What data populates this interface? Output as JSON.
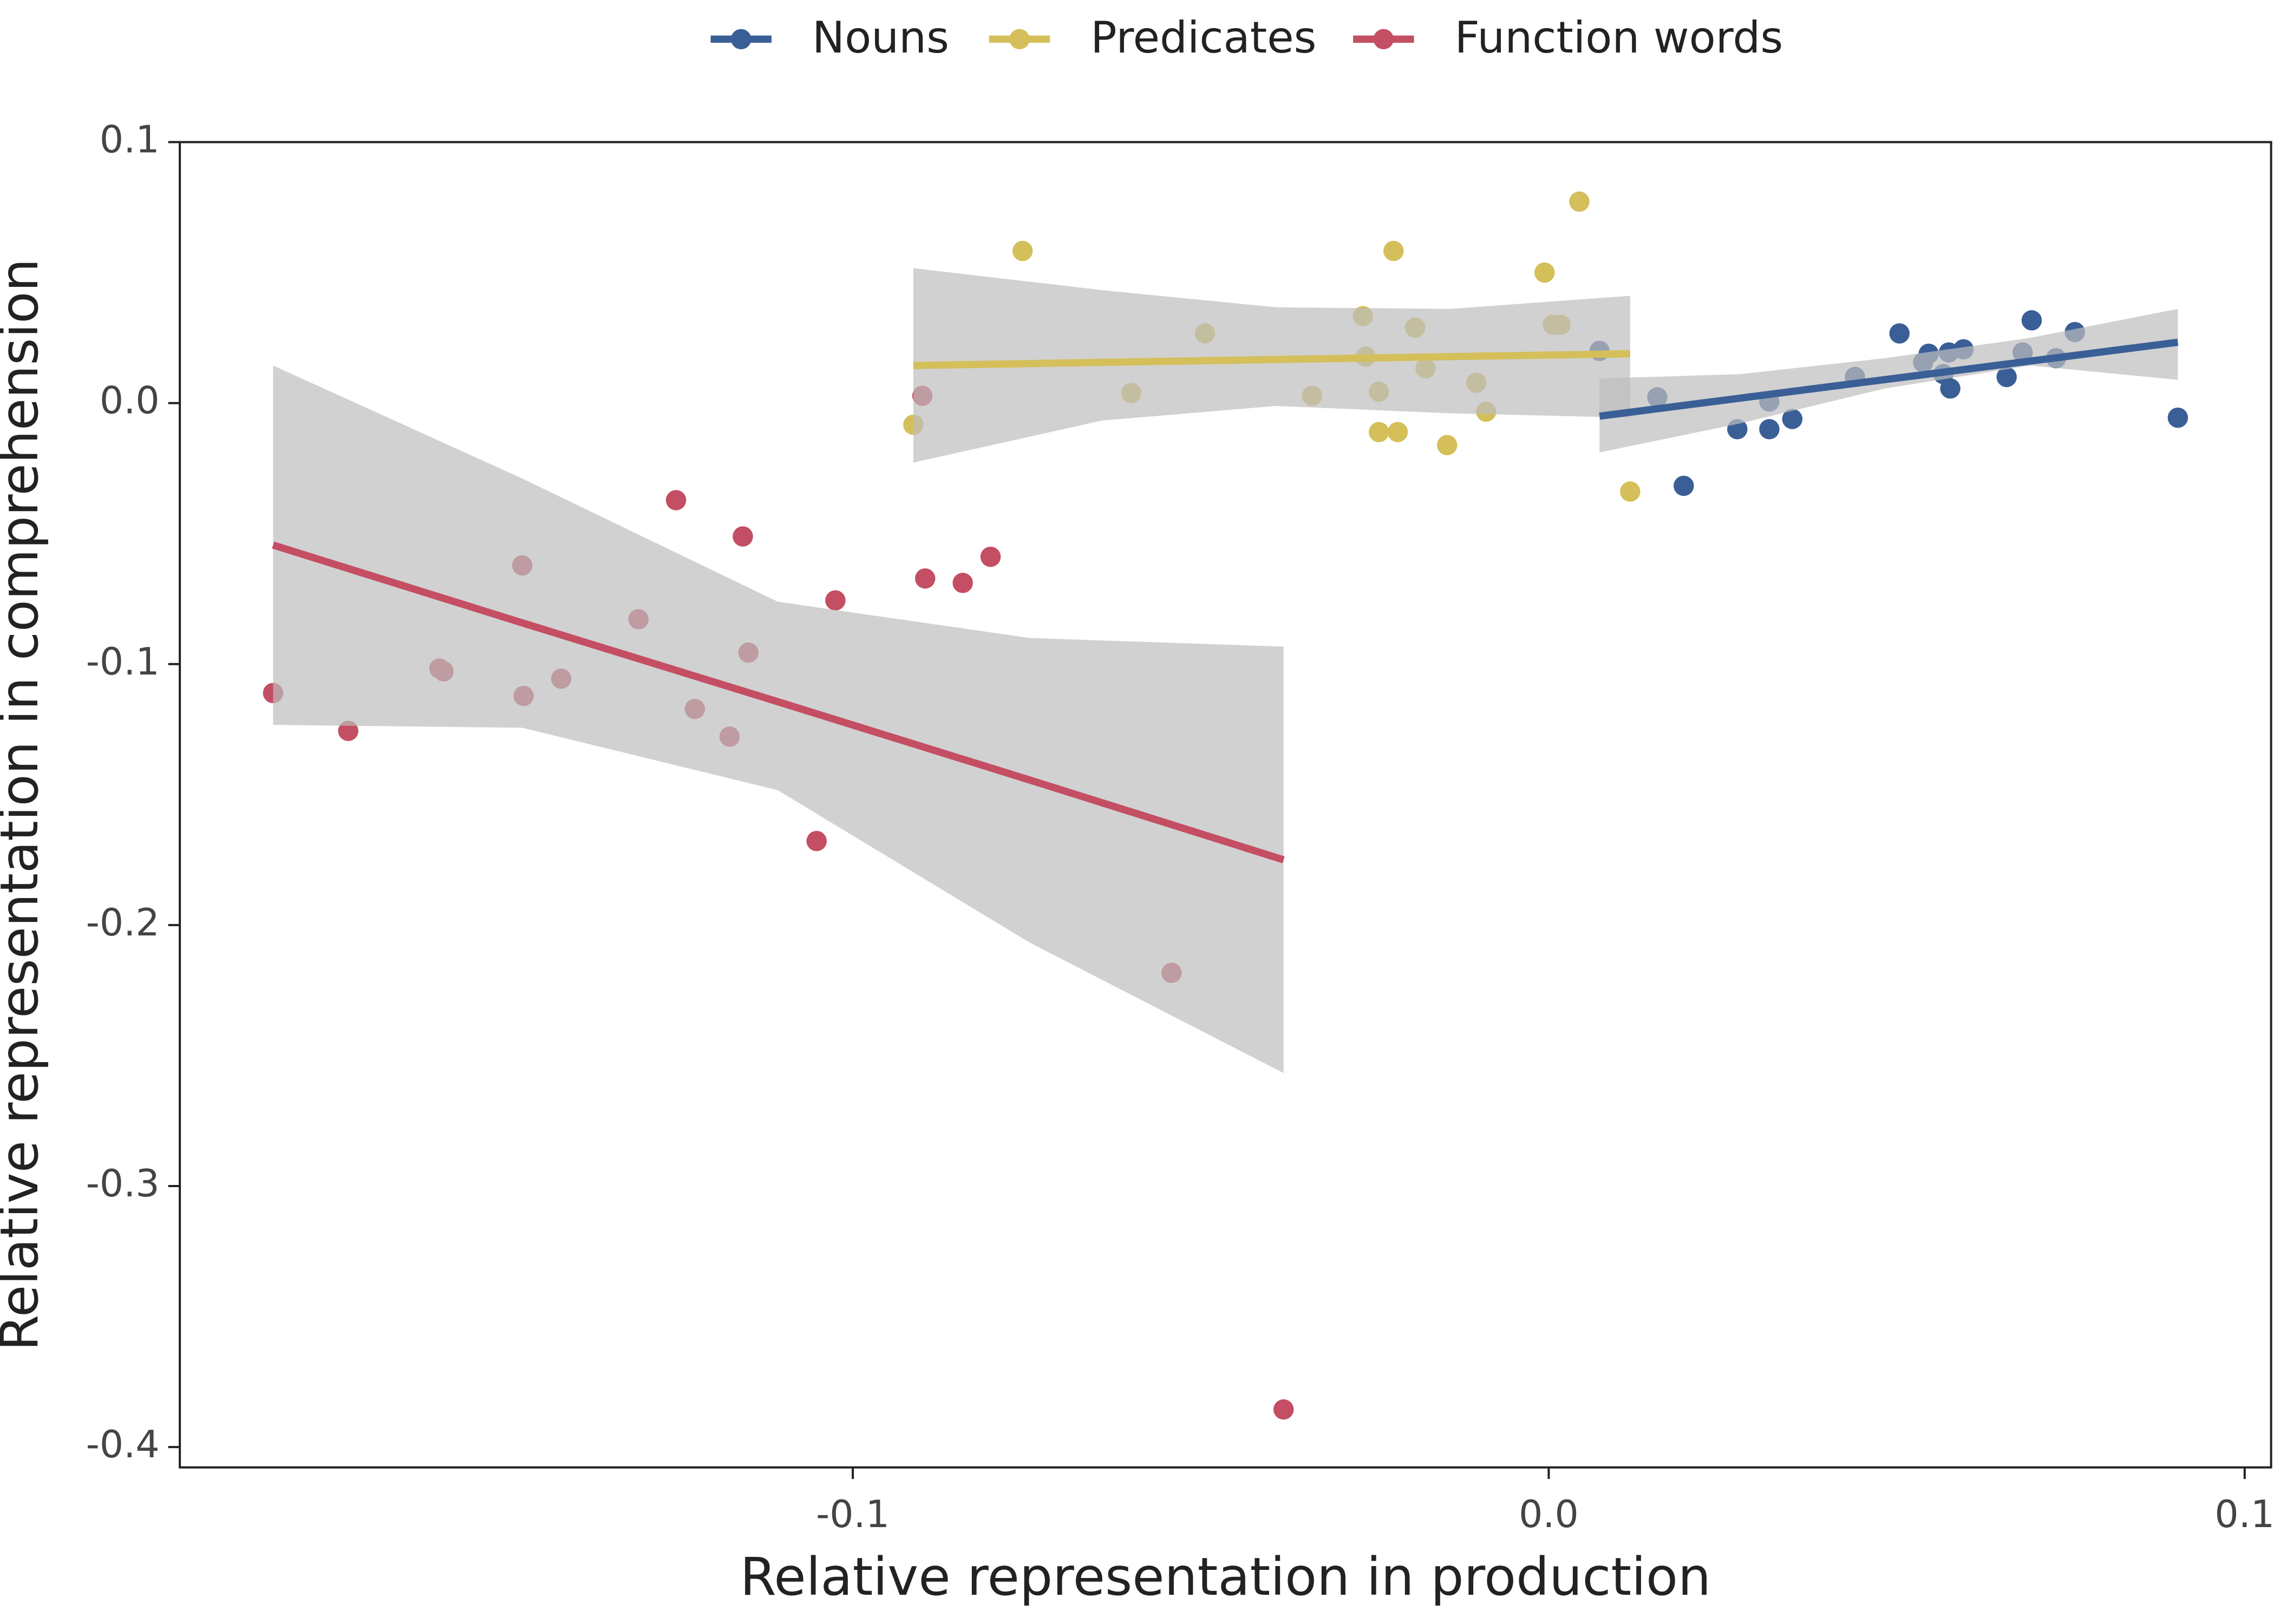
{
  "chart_data": {
    "type": "scatter",
    "x_label": "Relative representation in production",
    "y_label": "Relative representation in comprehension",
    "xlim": [
      -0.1967,
      0.1038
    ],
    "ylim": [
      -0.4078,
      0.1
    ],
    "xticks": [
      -0.1,
      {
        "value": 0,
        "label": "0.0"
      },
      0.1
    ],
    "yticks": [
      0.1,
      {
        "value": 0,
        "label": "0.0"
      },
      -0.1,
      -0.2,
      -0.3,
      -0.4
    ],
    "legend": "top",
    "ribbon_color": "#bdbdbd",
    "series": [
      {
        "name": "Nouns",
        "color": "#3a5f96",
        "x": [
          0.0073,
          0.0156,
          0.0194,
          0.0271,
          0.0317,
          0.0317,
          0.035,
          0.044,
          0.0504,
          0.0538,
          0.0546,
          0.0567,
          0.0575,
          0.0577,
          0.0596,
          0.0658,
          0.0681,
          0.0694,
          0.0729,
          0.0756,
          0.0904
        ],
        "values": [
          0.02,
          0.0022,
          -0.0317,
          -0.01,
          0.0006,
          -0.01,
          -0.0061,
          0.01,
          0.0267,
          0.0156,
          0.0189,
          0.0111,
          0.0194,
          0.0056,
          0.0206,
          0.01,
          0.0194,
          0.0317,
          0.0172,
          0.0272,
          -0.0056
        ],
        "fit": {
          "x": [
            0.0073,
            0.0275,
            0.0483,
            0.0692,
            0.0904
          ],
          "y": [
            -0.005,
            0.0019,
            0.009,
            0.0161,
            0.0233
          ],
          "upper": [
            0.0094,
            0.0111,
            0.0172,
            0.025,
            0.0361
          ],
          "lower": [
            -0.0189,
            -0.0078,
            0.0056,
            0.0144,
            0.0089
          ]
        }
      },
      {
        "name": "Predicates",
        "color": "#d4bf5a",
        "x": [
          -0.0913,
          -0.0756,
          -0.06,
          -0.0494,
          -0.034,
          -0.0267,
          -0.0263,
          -0.0244,
          -0.0244,
          -0.0223,
          -0.0217,
          -0.0192,
          -0.0177,
          -0.0146,
          -0.0104,
          -0.009,
          -0.0006,
          0.0006,
          0.0017,
          0.0044,
          0.0117
        ],
        "values": [
          -0.0083,
          0.0583,
          0.0039,
          0.0267,
          0.0028,
          0.0333,
          0.0178,
          0.0044,
          -0.0111,
          0.0583,
          -0.0111,
          0.0289,
          0.0133,
          -0.0161,
          0.0078,
          -0.0033,
          0.05,
          0.03,
          0.03,
          0.0772,
          -0.0339
        ],
        "fit": {
          "x": [
            -0.0913,
            -0.0642,
            -0.0392,
            -0.0142,
            0.0117
          ],
          "y": [
            0.0144,
            0.0156,
            0.0167,
            0.0178,
            0.0189
          ],
          "upper": [
            0.0517,
            0.0433,
            0.0367,
            0.0361,
            0.0411
          ],
          "lower": [
            -0.0228,
            -0.0067,
            -0.0011,
            -0.0039,
            -0.0056
          ]
        }
      },
      {
        "name": "Function words",
        "color": "#c44e63",
        "x": [
          -0.1833,
          -0.1725,
          -0.1594,
          -0.1588,
          -0.1475,
          -0.1473,
          -0.1419,
          -0.1308,
          -0.1254,
          -0.1227,
          -0.1177,
          -0.1158,
          -0.115,
          -0.1052,
          -0.1025,
          -0.09,
          -0.0896,
          -0.0842,
          -0.0802,
          -0.0542,
          -0.0381
        ],
        "values": [
          -0.1111,
          -0.1256,
          -0.1017,
          -0.1028,
          -0.0622,
          -0.1122,
          -0.1056,
          -0.0828,
          -0.0372,
          -0.1172,
          -0.1278,
          -0.0511,
          -0.0956,
          -0.1678,
          -0.0756,
          0.0028,
          -0.0672,
          -0.0689,
          -0.0589,
          -0.2183,
          -0.3856
        ],
        "fit": {
          "x": [
            -0.1833,
            -0.1475,
            -0.1108,
            -0.0746,
            -0.0381
          ],
          "y": [
            -0.0544,
            -0.0842,
            -0.1144,
            -0.1444,
            -0.175
          ],
          "upper": [
            0.0144,
            -0.0289,
            -0.0761,
            -0.09,
            -0.0933
          ],
          "lower": [
            -0.1233,
            -0.1244,
            -0.1483,
            -0.2067,
            -0.2567
          ]
        }
      }
    ]
  }
}
